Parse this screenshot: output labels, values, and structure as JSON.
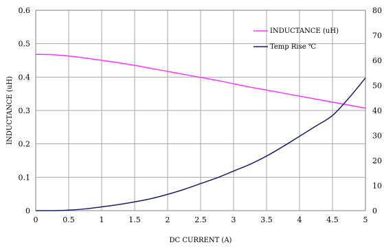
{
  "chart_data": {
    "type": "line",
    "title": "",
    "xlabel": "DC CURRENT  (A)",
    "ylabel": "INDUCTANCE (uH)",
    "ylabel_right": "",
    "xlim": [
      0,
      5
    ],
    "ylim": [
      0,
      0.6
    ],
    "ylim_right": [
      0,
      80
    ],
    "grid": true,
    "legend_position": "top-right",
    "x_ticks": [
      "0",
      "0.5",
      "1",
      "1.5",
      "2",
      "2.5",
      "3",
      "3.5",
      "4",
      "4.5",
      "5"
    ],
    "y_ticks": [
      "0",
      "0.1",
      "0.2",
      "0.3",
      "0.4",
      "0.5",
      "0.6"
    ],
    "y_ticks_right": [
      "0",
      "10",
      "20",
      "30",
      "40",
      "50",
      "60",
      "70",
      "80"
    ],
    "series": [
      {
        "name": "INDUCTANCE (uH)",
        "axis": "left",
        "color": "#ff33ff",
        "x": [
          0,
          0.25,
          0.5,
          0.75,
          1,
          1.25,
          1.5,
          1.75,
          2,
          2.25,
          2.5,
          2.75,
          3,
          3.25,
          3.5,
          3.75,
          4,
          4.25,
          4.5,
          4.75,
          5
        ],
        "y": [
          0.468,
          0.467,
          0.463,
          0.457,
          0.45,
          0.443,
          0.435,
          0.426,
          0.417,
          0.408,
          0.399,
          0.39,
          0.38,
          0.37,
          0.361,
          0.352,
          0.343,
          0.334,
          0.325,
          0.316,
          0.307
        ]
      },
      {
        "name": "Temp Rise ℃",
        "axis": "right",
        "color": "#1a1a6e",
        "x": [
          0,
          0.25,
          0.5,
          0.75,
          1,
          1.25,
          1.5,
          1.75,
          2,
          2.25,
          2.5,
          2.75,
          3,
          3.25,
          3.5,
          3.75,
          4,
          4.25,
          4.5,
          4.75,
          5
        ],
        "y": [
          0,
          0,
          0.2,
          0.7,
          1.5,
          2.4,
          3.5,
          4.8,
          6.5,
          8.5,
          10.8,
          13.1,
          15.8,
          18.5,
          21.8,
          25.6,
          29.7,
          33.8,
          38.0,
          45.0,
          53.0
        ]
      }
    ]
  },
  "colors": {
    "grid": "#a6a6a6",
    "plot_border": "#7f7f7f"
  }
}
